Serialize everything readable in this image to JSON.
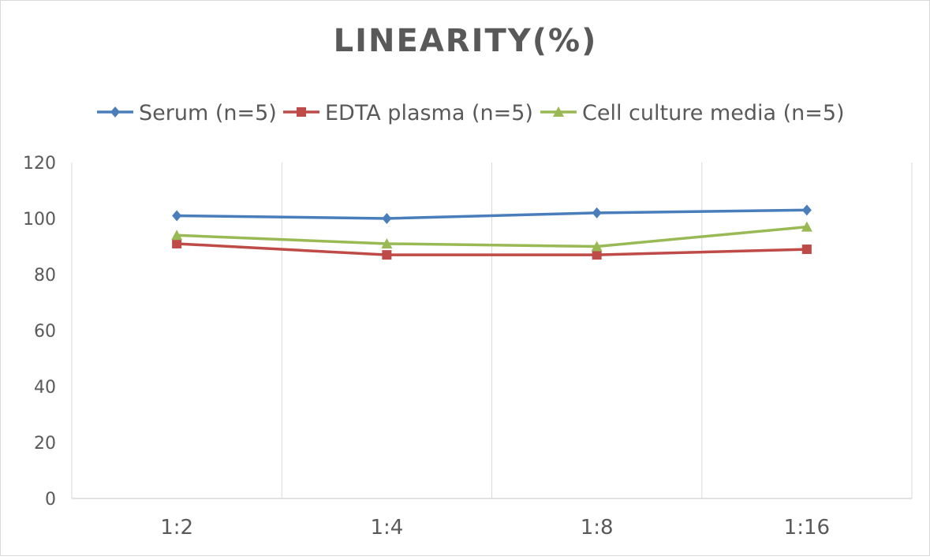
{
  "chart_data": {
    "type": "line",
    "title": "LINEARITY(%)",
    "categories": [
      "1:2",
      "1:4",
      "1:8",
      "1:16"
    ],
    "ylim": [
      0,
      120
    ],
    "yticks": [
      0,
      20,
      40,
      60,
      80,
      100,
      120
    ],
    "grid": "vertical",
    "legend_position": "top",
    "series": [
      {
        "name": "Serum (n=5)",
        "values": [
          101,
          100,
          102,
          103
        ],
        "color": "#4a7ebb",
        "marker": "diamond"
      },
      {
        "name": "EDTA plasma (n=5)",
        "values": [
          91,
          87,
          87,
          89
        ],
        "color": "#be4b48",
        "marker": "square"
      },
      {
        "name": "Cell culture media (n=5)",
        "values": [
          94,
          91,
          90,
          97
        ],
        "color": "#98b954",
        "marker": "triangle"
      }
    ]
  }
}
